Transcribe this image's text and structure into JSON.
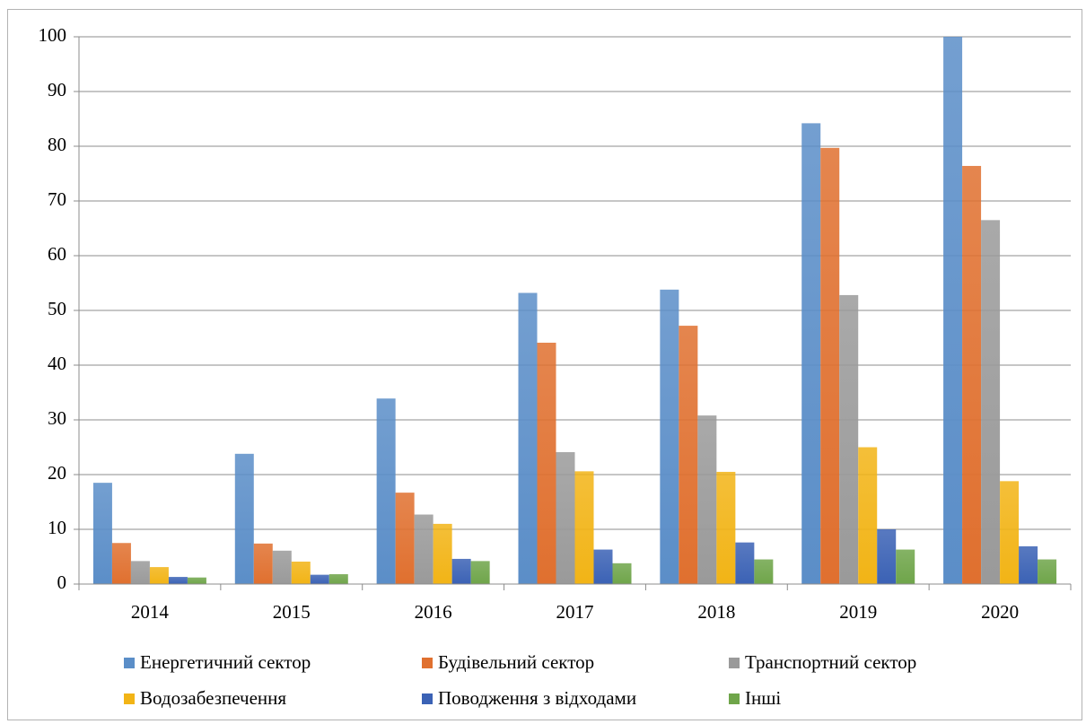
{
  "chart_data": {
    "type": "bar",
    "title": "",
    "xlabel": "",
    "ylabel": "",
    "ylim": [
      0,
      100
    ],
    "yticks": [
      0,
      10,
      20,
      30,
      40,
      50,
      60,
      70,
      80,
      90,
      100
    ],
    "grid": true,
    "legend_position": "bottom",
    "categories": [
      "2014",
      "2015",
      "2016",
      "2017",
      "2018",
      "2019",
      "2020"
    ],
    "series": [
      {
        "name": "Енергетичний сектор",
        "color": "#5b8ec8",
        "values": [
          18.5,
          23.8,
          33.9,
          53.2,
          53.8,
          84.2,
          100
        ]
      },
      {
        "name": "Будівельний сектор",
        "color": "#e0702f",
        "values": [
          7.5,
          7.4,
          16.7,
          44.1,
          47.2,
          79.7,
          76.4
        ]
      },
      {
        "name": "Транспортний сектор",
        "color": "#9a9a9a",
        "values": [
          4.2,
          6.1,
          12.7,
          24.1,
          30.8,
          52.8,
          66.5
        ]
      },
      {
        "name": "Водозабезпечення",
        "color": "#f2b416",
        "values": [
          3.1,
          4.1,
          11.0,
          20.6,
          20.5,
          25.0,
          18.8
        ]
      },
      {
        "name": "Поводження з відходами",
        "color": "#3b62b5",
        "values": [
          1.3,
          1.7,
          4.6,
          6.3,
          7.6,
          10.0,
          6.9
        ]
      },
      {
        "name": "Інші",
        "color": "#6fa54a",
        "values": [
          1.2,
          1.8,
          4.2,
          3.8,
          4.5,
          6.3,
          4.5
        ]
      }
    ]
  }
}
